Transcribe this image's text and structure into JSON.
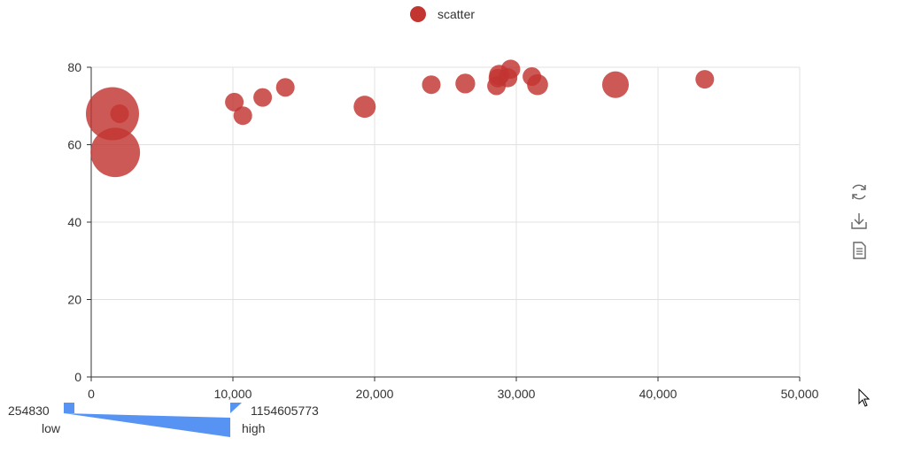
{
  "legend": {
    "label": "scatter",
    "color": "#c23531"
  },
  "toolbox": {
    "icons": [
      "refresh-icon",
      "download-icon",
      "data-view-icon"
    ]
  },
  "visual_map": {
    "min": "254830",
    "max": "1154605773",
    "low_label": "low",
    "high_label": "high",
    "color": "#5793f3"
  },
  "chart_data": {
    "type": "scatter",
    "x_ticks": [
      "0",
      "10,000",
      "20,000",
      "30,000",
      "40,000",
      "50,000"
    ],
    "y_ticks": [
      "0",
      "20",
      "40",
      "60",
      "80"
    ],
    "xlim": [
      0,
      50000
    ],
    "ylim": [
      0,
      80
    ],
    "grid": true,
    "legend_position": "top-center",
    "series": [
      {
        "name": "scatter",
        "color": "#c23531",
        "points": [
          {
            "x": 1500,
            "y": 68,
            "size": 1154605773
          },
          {
            "x": 1700,
            "y": 58,
            "size": 1000000000
          },
          {
            "x": 2000,
            "y": 68,
            "size": 130000000
          },
          {
            "x": 10100,
            "y": 71,
            "size": 120000000
          },
          {
            "x": 10700,
            "y": 67.5,
            "size": 130000000
          },
          {
            "x": 12100,
            "y": 72.2,
            "size": 140000000
          },
          {
            "x": 13700,
            "y": 74.8,
            "size": 125000000
          },
          {
            "x": 19300,
            "y": 69.8,
            "size": 200000000
          },
          {
            "x": 24000,
            "y": 75.5,
            "size": 130000000
          },
          {
            "x": 26400,
            "y": 75.8,
            "size": 160000000
          },
          {
            "x": 28600,
            "y": 75.2,
            "size": 120000000
          },
          {
            "x": 28700,
            "y": 77.2,
            "size": 140000000
          },
          {
            "x": 28800,
            "y": 78,
            "size": 170000000
          },
          {
            "x": 29400,
            "y": 77.3,
            "size": 150000000
          },
          {
            "x": 29600,
            "y": 79.5,
            "size": 150000000
          },
          {
            "x": 31100,
            "y": 77.6,
            "size": 130000000
          },
          {
            "x": 31500,
            "y": 75.5,
            "size": 180000000
          },
          {
            "x": 37000,
            "y": 75.5,
            "size": 290000000
          },
          {
            "x": 43300,
            "y": 76.9,
            "size": 120000000
          }
        ]
      }
    ]
  }
}
